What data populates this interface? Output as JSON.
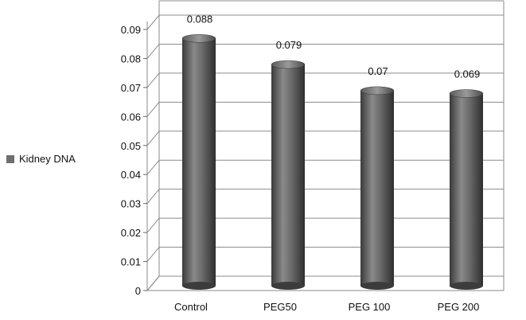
{
  "chart_data": {
    "type": "bar",
    "title": "",
    "xlabel": "",
    "ylabel": "",
    "categories": [
      "Control",
      "PEG50",
      "PEG 100",
      "PEG 200"
    ],
    "series": [
      {
        "name": "Kidney DNA",
        "values": [
          0.088,
          0.079,
          0.07,
          0.069
        ],
        "labels": [
          "0.088",
          "0.079",
          "0.07",
          "0.069"
        ]
      }
    ],
    "ylim": [
      0,
      0.09
    ],
    "yticks": [
      "0",
      "0.01",
      "0.02",
      "0.03",
      "0.04",
      "0.05",
      "0.06",
      "0.07",
      "0.08",
      "0.09"
    ],
    "grid": true,
    "legend_position": "left",
    "style": "3d-cylinder",
    "bar_color": "#6e6e6e"
  }
}
